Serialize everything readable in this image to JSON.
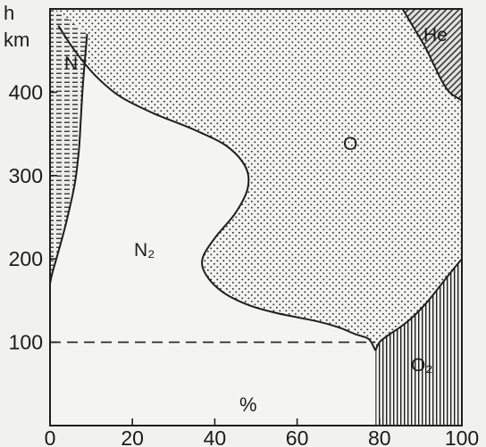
{
  "chart_data": {
    "type": "area",
    "ylabel": "h",
    "yunit": "km",
    "xlabel": "%",
    "xlim": [
      0,
      100
    ],
    "ylim": [
      0,
      500
    ],
    "xticks": [
      "0",
      "20",
      "40",
      "60",
      "80",
      "100"
    ],
    "yticks": [
      "100",
      "200",
      "300",
      "400"
    ],
    "reference_line": {
      "y": 100,
      "style": "dashed"
    },
    "regions": [
      {
        "name": "N",
        "fill": "horizontal-dashes"
      },
      {
        "name": "N₂",
        "fill": "none"
      },
      {
        "name": "O",
        "fill": "dots"
      },
      {
        "name": "He",
        "fill": "diagonal-hatch"
      },
      {
        "name": "O₂",
        "fill": "vertical-lines"
      }
    ],
    "boundaries": {
      "N_upper": {
        "x": [
          0,
          0.5,
          2,
          4,
          6,
          7,
          7.5,
          8,
          8.5,
          9
        ],
        "y": [
          170,
          182,
          208,
          245,
          290,
          330,
          370,
          410,
          440,
          470
        ]
      },
      "N2_upper": {
        "x": [
          79,
          78,
          77,
          74,
          70,
          65,
          55,
          48,
          42,
          38,
          37,
          40,
          45,
          48,
          47.5,
          43,
          35,
          25,
          17,
          11,
          6,
          2
        ],
        "y": [
          90,
          100,
          105,
          110,
          118,
          125,
          135,
          145,
          160,
          180,
          200,
          225,
          255,
          285,
          310,
          335,
          355,
          375,
          395,
          420,
          450,
          480
        ]
      },
      "O2_upper": {
        "x": [
          79,
          80,
          82,
          85,
          88,
          91,
          94,
          97,
          100
        ],
        "y": [
          90,
          100,
          108,
          118,
          130,
          145,
          163,
          182,
          200
        ]
      },
      "O_upper": {
        "x": [
          85,
          88,
          91,
          93,
          95,
          97,
          100
        ],
        "y": [
          505,
          480,
          455,
          435,
          415,
          400,
          390
        ]
      }
    }
  }
}
